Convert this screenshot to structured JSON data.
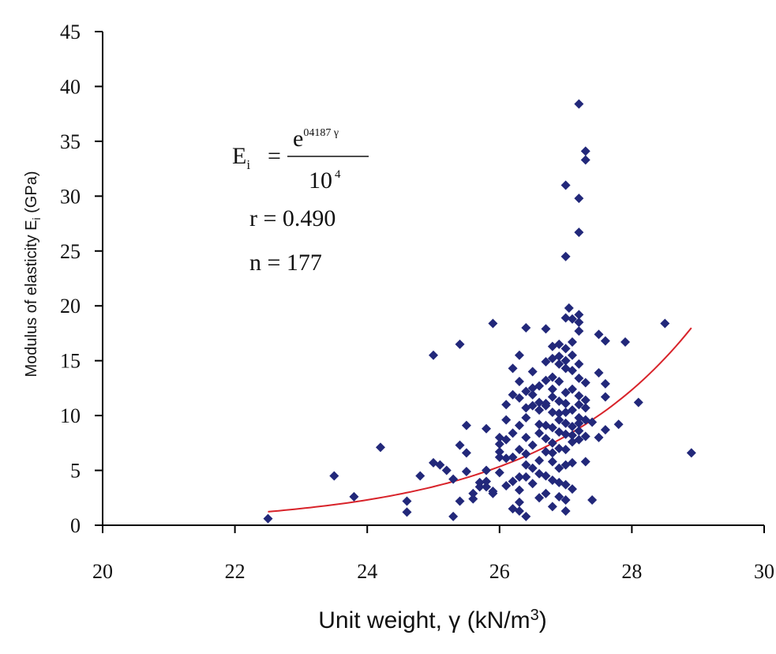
{
  "chart_data": {
    "type": "scatter",
    "title": "",
    "xlabel": "Unit weight, γ (kN/m³)",
    "xlabel_main": "Unit weight, γ (kN/m",
    "xlabel_sup": "3",
    "xlabel_tail": ")",
    "ylabel": "Modulus of elasticity Ei (GPa)",
    "ylabel_main": "Modulus of elasticity E",
    "ylabel_sub": "i",
    "ylabel_tail": " (GPa)",
    "xlim": [
      20,
      30
    ],
    "ylim": [
      0,
      45
    ],
    "x_ticks": [
      "20",
      "22",
      "24",
      "26",
      "28",
      "30"
    ],
    "y_ticks": [
      "0",
      "5",
      "10",
      "15",
      "20",
      "25",
      "30",
      "35",
      "40",
      "45"
    ],
    "grid": false,
    "legend": "none",
    "colors": {
      "points": "#22287a",
      "fit": "#d8232a",
      "axis": "#000000"
    },
    "annotation": {
      "lhs_main": "E",
      "lhs_sub": "i",
      "equals": "=",
      "numerator_base": "e",
      "numerator_exp": "04187  γ",
      "denominator_base": "10",
      "denominator_exp": "4",
      "r_line": "r = 0.490",
      "n_line": "n = 177"
    },
    "fit": {
      "equation": "Ei = e^(0.4187 γ) / 10^4",
      "x_start": 22.5,
      "x_end": 28.9
    },
    "points": [
      [
        22.5,
        0.6
      ],
      [
        23.5,
        4.5
      ],
      [
        23.8,
        2.6
      ],
      [
        24.2,
        7.1
      ],
      [
        24.6,
        2.2
      ],
      [
        24.6,
        1.2
      ],
      [
        24.8,
        4.5
      ],
      [
        25.0,
        15.5
      ],
      [
        25.0,
        5.7
      ],
      [
        25.1,
        5.5
      ],
      [
        25.3,
        0.8
      ],
      [
        25.3,
        4.2
      ],
      [
        25.4,
        16.5
      ],
      [
        25.4,
        2.2
      ],
      [
        25.4,
        7.3
      ],
      [
        25.5,
        9.1
      ],
      [
        25.5,
        6.6
      ],
      [
        25.5,
        4.9
      ],
      [
        25.6,
        2.4
      ],
      [
        25.6,
        2.9
      ],
      [
        25.7,
        3.5
      ],
      [
        25.8,
        8.8
      ],
      [
        25.8,
        5.0
      ],
      [
        25.8,
        3.5
      ],
      [
        25.8,
        4.0
      ],
      [
        25.9,
        18.4
      ],
      [
        25.9,
        3.1
      ],
      [
        26.0,
        8.0
      ],
      [
        26.0,
        6.7
      ],
      [
        26.0,
        7.4
      ],
      [
        26.1,
        7.8
      ],
      [
        26.1,
        9.6
      ],
      [
        26.1,
        3.6
      ],
      [
        26.2,
        14.3
      ],
      [
        26.2,
        11.9
      ],
      [
        26.2,
        6.2
      ],
      [
        26.2,
        1.5
      ],
      [
        26.2,
        4.0
      ],
      [
        26.3,
        15.5
      ],
      [
        26.3,
        13.1
      ],
      [
        26.3,
        11.6
      ],
      [
        26.3,
        9.1
      ],
      [
        26.3,
        6.9
      ],
      [
        26.3,
        4.4
      ],
      [
        26.3,
        2.1
      ],
      [
        26.3,
        1.3
      ],
      [
        26.4,
        18.0
      ],
      [
        26.4,
        12.2
      ],
      [
        26.4,
        10.7
      ],
      [
        26.4,
        9.8
      ],
      [
        26.4,
        8.0
      ],
      [
        26.4,
        6.5
      ],
      [
        26.4,
        4.4
      ],
      [
        26.4,
        0.8
      ],
      [
        26.5,
        14.0
      ],
      [
        26.5,
        11.9
      ],
      [
        26.5,
        10.9
      ],
      [
        26.5,
        5.2
      ],
      [
        26.5,
        3.8
      ],
      [
        26.6,
        12.7
      ],
      [
        26.6,
        11.2
      ],
      [
        26.6,
        10.5
      ],
      [
        26.6,
        8.4
      ],
      [
        26.6,
        5.9
      ],
      [
        26.6,
        4.7
      ],
      [
        26.7,
        17.9
      ],
      [
        26.7,
        13.2
      ],
      [
        26.7,
        11.1
      ],
      [
        26.7,
        9.1
      ],
      [
        26.7,
        7.9
      ],
      [
        26.7,
        6.7
      ],
      [
        26.7,
        4.5
      ],
      [
        26.7,
        2.9
      ],
      [
        26.8,
        16.3
      ],
      [
        26.8,
        15.2
      ],
      [
        26.8,
        13.5
      ],
      [
        26.8,
        11.7
      ],
      [
        26.8,
        10.3
      ],
      [
        26.8,
        8.9
      ],
      [
        26.8,
        7.5
      ],
      [
        26.8,
        5.8
      ],
      [
        26.8,
        4.1
      ],
      [
        26.8,
        1.7
      ],
      [
        26.9,
        16.5
      ],
      [
        26.9,
        15.4
      ],
      [
        26.9,
        13.1
      ],
      [
        26.9,
        11.3
      ],
      [
        26.9,
        10.2
      ],
      [
        26.9,
        8.5
      ],
      [
        26.9,
        7.0
      ],
      [
        26.9,
        5.2
      ],
      [
        26.9,
        3.9
      ],
      [
        26.9,
        2.6
      ],
      [
        27.0,
        31.0
      ],
      [
        27.0,
        24.5
      ],
      [
        27.0,
        18.9
      ],
      [
        27.0,
        16.1
      ],
      [
        27.0,
        14.3
      ],
      [
        27.0,
        12.1
      ],
      [
        27.0,
        10.3
      ],
      [
        27.0,
        9.3
      ],
      [
        27.0,
        8.3
      ],
      [
        27.0,
        6.9
      ],
      [
        27.0,
        5.5
      ],
      [
        27.0,
        3.7
      ],
      [
        27.0,
        2.3
      ],
      [
        27.0,
        1.3
      ],
      [
        27.05,
        19.8
      ],
      [
        27.1,
        18.8
      ],
      [
        27.1,
        15.5
      ],
      [
        27.1,
        14.1
      ],
      [
        27.1,
        12.4
      ],
      [
        27.1,
        10.5
      ],
      [
        27.1,
        9.0
      ],
      [
        27.1,
        7.6
      ],
      [
        27.1,
        5.7
      ],
      [
        27.1,
        3.3
      ],
      [
        27.2,
        38.4
      ],
      [
        27.2,
        29.8
      ],
      [
        27.2,
        26.7
      ],
      [
        27.2,
        19.2
      ],
      [
        27.2,
        18.5
      ],
      [
        27.2,
        14.7
      ],
      [
        27.2,
        13.4
      ],
      [
        27.2,
        11.8
      ],
      [
        27.2,
        11.0
      ],
      [
        27.2,
        9.8
      ],
      [
        27.2,
        8.6
      ],
      [
        27.2,
        7.8
      ],
      [
        27.3,
        34.1
      ],
      [
        27.3,
        33.3
      ],
      [
        27.3,
        13.0
      ],
      [
        27.3,
        11.4
      ],
      [
        27.3,
        9.6
      ],
      [
        27.3,
        8.1
      ],
      [
        27.3,
        5.8
      ],
      [
        27.4,
        9.4
      ],
      [
        27.4,
        2.3
      ],
      [
        27.5,
        17.4
      ],
      [
        27.5,
        13.9
      ],
      [
        27.5,
        8.0
      ],
      [
        27.6,
        16.8
      ],
      [
        27.6,
        12.9
      ],
      [
        27.6,
        11.7
      ],
      [
        27.6,
        8.7
      ],
      [
        27.8,
        9.2
      ],
      [
        27.9,
        16.7
      ],
      [
        28.1,
        11.2
      ],
      [
        28.5,
        18.4
      ],
      [
        28.9,
        6.6
      ],
      [
        25.2,
        5.0
      ],
      [
        25.7,
        3.9
      ],
      [
        26.0,
        6.2
      ],
      [
        26.1,
        6.1
      ],
      [
        26.2,
        8.4
      ],
      [
        26.5,
        7.3
      ],
      [
        26.6,
        9.2
      ],
      [
        26.7,
        10.9
      ],
      [
        26.8,
        12.4
      ],
      [
        26.9,
        14.7
      ],
      [
        27.0,
        15.0
      ],
      [
        27.1,
        16.7
      ],
      [
        27.2,
        17.7
      ],
      [
        27.3,
        10.7
      ],
      [
        26.4,
        5.5
      ],
      [
        26.3,
        3.2
      ],
      [
        26.6,
        2.5
      ],
      [
        26.0,
        4.8
      ],
      [
        25.9,
        2.9
      ],
      [
        26.1,
        11.0
      ],
      [
        26.5,
        12.5
      ],
      [
        26.7,
        14.9
      ],
      [
        26.9,
        9.6
      ],
      [
        27.0,
        11.1
      ],
      [
        27.1,
        8.2
      ],
      [
        27.2,
        9.3
      ],
      [
        26.8,
        6.6
      ]
    ]
  }
}
